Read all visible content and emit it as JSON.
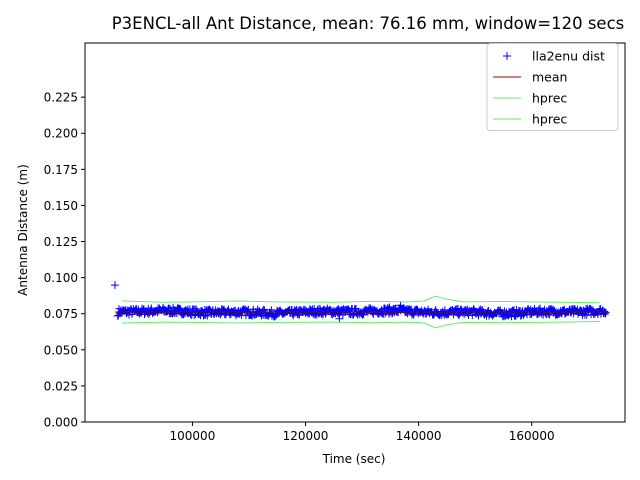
{
  "chart_data": {
    "type": "scatter",
    "title": "P3ENCL-all Ant Distance, mean: 76.16 mm, window=120 secs",
    "xlabel": "Time (sec)",
    "ylabel": "Antenna Distance (m)",
    "xlim": [
      81000,
      176500
    ],
    "ylim": [
      0,
      0.2625
    ],
    "xticks": [
      100000,
      120000,
      140000,
      160000
    ],
    "xtick_labels": [
      "100000",
      "120000",
      "140000",
      "160000"
    ],
    "yticks": [
      0,
      0.025,
      0.05,
      0.075,
      0.1,
      0.125,
      0.15,
      0.175,
      0.2,
      0.225
    ],
    "ytick_labels": [
      "0.000",
      "0.025",
      "0.050",
      "0.075",
      "0.100",
      "0.125",
      "0.150",
      "0.175",
      "0.200",
      "0.225"
    ],
    "grid": false,
    "legend_position": "top-right",
    "series": [
      {
        "name": "lla2enu dist",
        "kind": "points",
        "marker": "+",
        "color": "#0000ff",
        "x_range": [
          86300,
          173200
        ],
        "typical_value": 0.0762,
        "spread": 0.0025,
        "outliers": [
          {
            "x": 86300,
            "y": 0.0948
          },
          {
            "x": 86800,
            "y": 0.0735
          },
          {
            "x": 136800,
            "y": 0.0808
          },
          {
            "x": 126000,
            "y": 0.0715
          }
        ]
      },
      {
        "name": "mean",
        "kind": "line",
        "color": "#8b0000",
        "value": 0.07616
      },
      {
        "name": "hprec",
        "kind": "line",
        "color": "#66ee66",
        "x": [
          87500,
          95000,
          100000,
          108000,
          115000,
          125000,
          132000,
          138000,
          141000,
          143000,
          145000,
          148000,
          155000,
          165000,
          172000
        ],
        "y": [
          0.0838,
          0.083,
          0.0832,
          0.0838,
          0.0832,
          0.083,
          0.0836,
          0.0832,
          0.0838,
          0.0872,
          0.085,
          0.0832,
          0.0835,
          0.083,
          0.0826
        ]
      },
      {
        "name": "hprec",
        "kind": "line",
        "color": "#66ee66",
        "x": [
          87500,
          95000,
          100000,
          108000,
          115000,
          125000,
          132000,
          138000,
          141000,
          143000,
          145000,
          148000,
          155000,
          165000,
          172000
        ],
        "y": [
          0.0686,
          0.0692,
          0.069,
          0.0686,
          0.069,
          0.0692,
          0.0688,
          0.0692,
          0.0686,
          0.0652,
          0.0674,
          0.069,
          0.0688,
          0.0692,
          0.0697
        ]
      }
    ]
  }
}
